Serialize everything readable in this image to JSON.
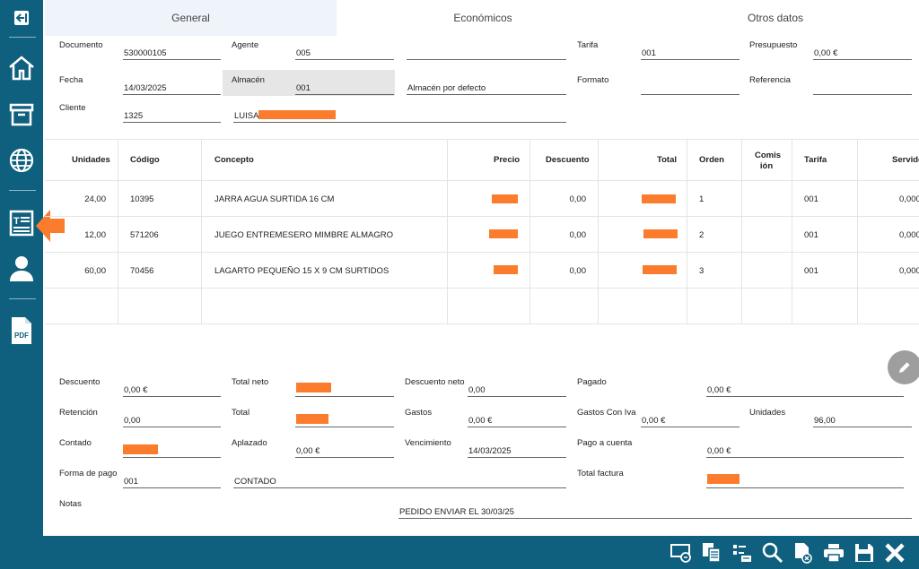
{
  "tabs": [
    {
      "label": "General"
    },
    {
      "label": "Económicos"
    },
    {
      "label": "Otros datos"
    }
  ],
  "sidebar": {
    "items": [
      {
        "name": "exit-icon"
      },
      {
        "name": "home-icon"
      },
      {
        "name": "archive-icon"
      },
      {
        "name": "globe-icon"
      },
      {
        "name": "document-text-icon"
      },
      {
        "name": "user-icon"
      },
      {
        "name": "pdf-icon",
        "text": "PDF"
      }
    ],
    "active_color": "#fb7c2c"
  },
  "header": {
    "documento": {
      "label": "Documento",
      "value": "530000105"
    },
    "agente": {
      "label": "Agente",
      "value": "005"
    },
    "agente_nombre": {
      "value": ""
    },
    "tarifa": {
      "label": "Tarifa",
      "value": "001"
    },
    "presupuesto": {
      "label": "Presupuesto",
      "value": "0,00 €"
    },
    "fecha": {
      "label": "Fecha",
      "value": "14/03/2025"
    },
    "almacen": {
      "label": "Almacén",
      "value": "001"
    },
    "almacen_desc": {
      "value": "Almacén por defecto"
    },
    "formato": {
      "label": "Formato",
      "value": ""
    },
    "referencia": {
      "label": "Referencia",
      "value": ""
    },
    "cliente": {
      "label": "Cliente",
      "value": "1325"
    },
    "cliente_nombre": {
      "value": "LUISA"
    }
  },
  "grid": {
    "columns": [
      "Unidades",
      "Código",
      "Concepto",
      "Precio",
      "Descuento",
      "Total",
      "Orden",
      "Comis",
      "ión",
      "Tarifa",
      "Servido"
    ],
    "rows": [
      {
        "unidades": "24,00",
        "codigo": "10395",
        "concepto": "JARRA AGUA SURTIDA 16 CM",
        "descuento": "0,00",
        "orden": "1",
        "tarifa": "001",
        "servido": "0,000"
      },
      {
        "unidades": "12,00",
        "codigo": "571206",
        "concepto": "JUEGO ENTREMESERO MIMBRE ALMAGRO",
        "descuento": "0,00",
        "orden": "2",
        "tarifa": "001",
        "servido": "0,000"
      },
      {
        "unidades": "60,00",
        "codigo": "70456",
        "concepto": "LAGARTO PEQUEÑO 15 X 9 CM SURTIDOS",
        "descuento": "0,00",
        "orden": "3",
        "tarifa": "001",
        "servido": "0,000"
      }
    ]
  },
  "totals": {
    "descuento": {
      "label": "Descuento",
      "value": "0,00 €"
    },
    "total_neto": {
      "label": "Total neto"
    },
    "descuento_neto": {
      "label": "Descuento neto",
      "value": "0,00"
    },
    "pagado": {
      "label": "Pagado",
      "value": "0,00 €"
    },
    "retencion": {
      "label": "Retención",
      "value": "0,00"
    },
    "total": {
      "label": "Total"
    },
    "gastos": {
      "label": "Gastos",
      "value": "0,00 €"
    },
    "gastos_con_iva": {
      "label": "Gastos Con Iva",
      "value": "0,00 €"
    },
    "unidades": {
      "label": "Unidades",
      "value": "96,00"
    },
    "contado": {
      "label": "Contado"
    },
    "aplazado": {
      "label": "Aplazado",
      "value": "0,00 €"
    },
    "vencimiento": {
      "label": "Vencimiento",
      "value": "14/03/2025"
    },
    "pago_a_cuenta": {
      "label": "Pago a cuenta",
      "value": "0,00 €"
    },
    "forma_pago": {
      "label": "Forma de pago",
      "value": "001"
    },
    "forma_pago_desc": {
      "value": "CONTADO"
    },
    "total_factura": {
      "label": "Total factura"
    },
    "notas": {
      "label": "Notas",
      "value": "PEDIDO ENVIAR EL 30/03/25"
    }
  },
  "toolbar": [
    {
      "name": "screen-icon"
    },
    {
      "name": "copy-document-icon"
    },
    {
      "name": "list-settings-icon"
    },
    {
      "name": "search-icon"
    },
    {
      "name": "delete-document-icon"
    },
    {
      "name": "print-icon"
    },
    {
      "name": "save-icon"
    },
    {
      "name": "close-icon"
    }
  ],
  "colors": {
    "brand": "#0f607f",
    "accent": "#fb7c2c",
    "tab_active": "#eef4fa"
  }
}
